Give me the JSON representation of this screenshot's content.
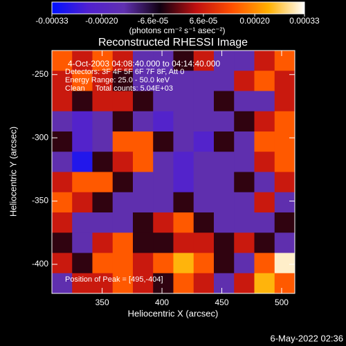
{
  "chart_data": {
    "type": "heatmap",
    "title": "Reconstructed RHESSI Image",
    "x_label": "Heliocentric X (arcsec)",
    "y_label": "Heliocentric Y (arcsec)",
    "xlim": [
      308,
      511
    ],
    "ylim": [
      -423,
      -231
    ],
    "xticks": [
      350,
      400,
      450,
      500
    ],
    "yticks": [
      -250,
      -300,
      -350,
      -400
    ],
    "annotations": [
      "4-Oct-2003 04:08:40.000 to 04:14:40.000",
      "Detectors: 3F 4F 5F 6F 7F 8F, Att 0",
      "Energy Range: 25.0 - 50.0 keV",
      "Clean     Total counts: 5.04E+03"
    ],
    "peak_label": "Position of Peak = [495,-404]",
    "colorbar": {
      "label": "(photons cm⁻² s⁻¹ asec⁻²)",
      "lim": [
        -0.00033,
        0.00033
      ],
      "ticks": [
        {
          "value": -0.00033,
          "label": "-0.00033"
        },
        {
          "value": -0.0002,
          "label": "-0.00020"
        },
        {
          "value": -6.6e-05,
          "label": "-6.6e-05"
        },
        {
          "value": 6.6e-05,
          "label": "6.6e-05"
        },
        {
          "value": 0.0002,
          "label": "0.00020"
        },
        {
          "value": 0.00033,
          "label": "0.00033"
        }
      ],
      "colors": [
        "#0010ff",
        "#5020d0",
        "#6030b0",
        "#100010",
        "#c01010",
        "#ff5000",
        "#ffb000",
        "#ffffff"
      ]
    },
    "z": [
      [
        0.00015,
        6e-05,
        0.00015,
        6e-05,
        -0.00014,
        -0.00014,
        -3e-05,
        6e-05,
        -0.00014,
        -0.00014,
        6e-05,
        0.00015
      ],
      [
        6e-05,
        0.00015,
        6e-05,
        -3e-05,
        -0.00014,
        -0.00014,
        -0.00014,
        -0.00014,
        -0.00014,
        6e-05,
        0.00015,
        6e-05
      ],
      [
        6e-05,
        -3e-05,
        6e-05,
        6e-05,
        -3e-05,
        -0.00014,
        -0.00014,
        -0.00014,
        -3e-05,
        -0.00014,
        -0.00014,
        6e-05
      ],
      [
        -0.00014,
        -0.00022,
        -0.00014,
        -3e-05,
        -0.00014,
        -0.00022,
        -0.00014,
        -0.00014,
        -0.00014,
        -3e-05,
        6e-05,
        0.00015
      ],
      [
        -3e-05,
        -0.00022,
        -0.00014,
        0.00015,
        0.00015,
        -3e-05,
        -0.00014,
        -0.00022,
        -3e-05,
        -0.00014,
        0.00015,
        0.00015
      ],
      [
        -0.00014,
        -0.00029,
        -3e-05,
        6e-05,
        0.00015,
        -0.00014,
        -0.00022,
        -0.00014,
        -0.00014,
        -0.00014,
        6e-05,
        0.00015
      ],
      [
        6e-05,
        0.00015,
        0.00015,
        -3e-05,
        -0.00014,
        -0.00014,
        -0.00022,
        -0.00014,
        -0.00014,
        -3e-05,
        -0.00014,
        6e-05
      ],
      [
        0.00015,
        6e-05,
        -3e-05,
        -0.00014,
        -0.00014,
        -0.00014,
        -3e-05,
        -0.00014,
        -0.00014,
        -0.00014,
        6e-05,
        -0.00014
      ],
      [
        6e-05,
        -0.00014,
        -0.00014,
        -0.00014,
        -3e-05,
        6e-05,
        0.00015,
        -3e-05,
        -0.00014,
        -0.00014,
        -0.00014,
        -3e-05
      ],
      [
        -3e-05,
        -0.00014,
        6e-05,
        0.00015,
        -3e-05,
        -3e-05,
        6e-05,
        6e-05,
        -3e-05,
        6e-05,
        -3e-05,
        -0.00014
      ],
      [
        6e-05,
        -3e-05,
        0.00015,
        0.00015,
        6e-05,
        0.00015,
        0.00024,
        0.00015,
        -3e-05,
        -0.00014,
        0.00015,
        0.00031
      ],
      [
        -0.00014,
        6e-05,
        6e-05,
        0.00015,
        6e-05,
        -3e-05,
        0.00015,
        6e-05,
        -0.00014,
        6e-05,
        0.00024,
        0.00015
      ]
    ]
  },
  "footer": {
    "date": "6-May-2022 02:36"
  }
}
